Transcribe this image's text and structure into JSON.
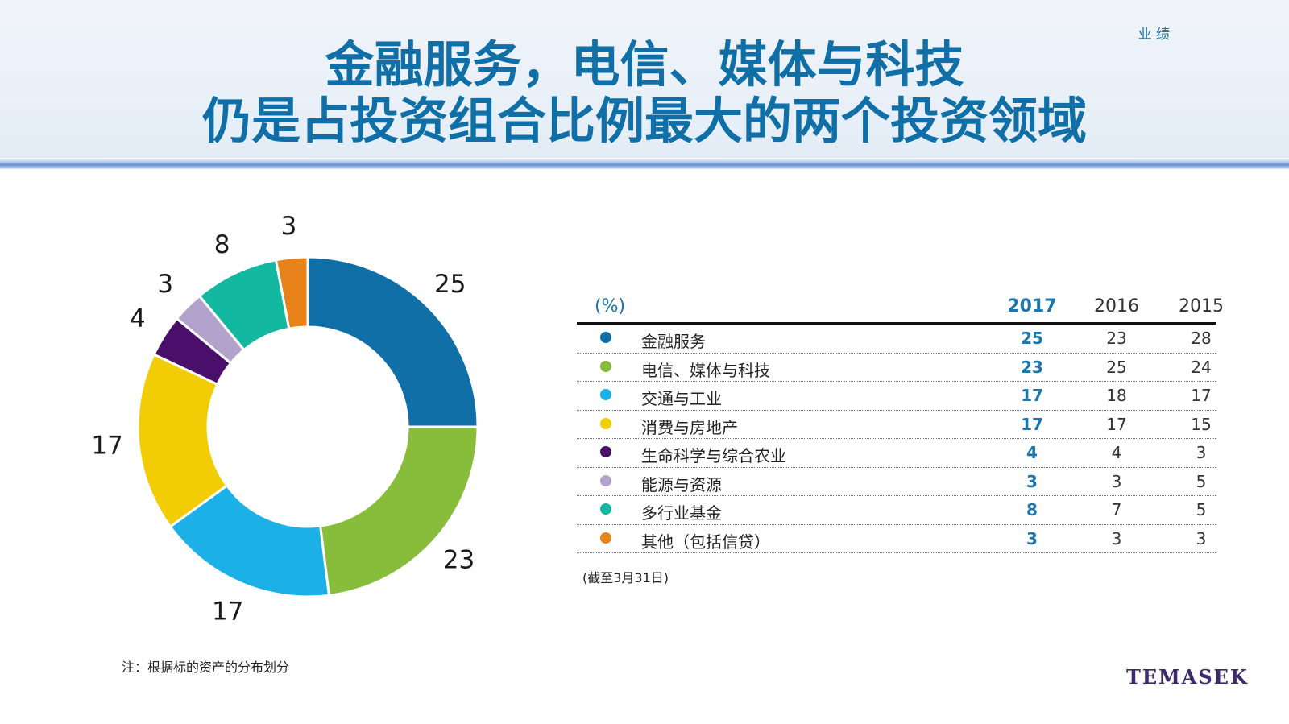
{
  "header": {
    "section_label": "业 绩",
    "title_line1": "金融服务，电信、媒体与科技",
    "title_line2": "仍是占投资组合比例最大的两个投资领域"
  },
  "chart_data": {
    "type": "table",
    "unit_label": "(%)",
    "columns": [
      "2017",
      "2016",
      "2015"
    ],
    "rows": [
      {
        "name": "金融服务",
        "color": "#0f6fa6",
        "values": [
          "25",
          "23",
          "28"
        ]
      },
      {
        "name": "电信、媒体与科技",
        "color": "#88bd3b",
        "values": [
          "23",
          "25",
          "24"
        ]
      },
      {
        "name": "交通与工业",
        "color": "#1bb0e6",
        "values": [
          "17",
          "18",
          "17"
        ]
      },
      {
        "name": "消费与房地产",
        "color": "#f2cc05",
        "values": [
          "17",
          "17",
          "15"
        ]
      },
      {
        "name": "生命科学与综合农业",
        "color": "#4a0f6b",
        "values": [
          "4",
          "4",
          "3"
        ]
      },
      {
        "name": "能源与资源",
        "color": "#b3a2cc",
        "values": [
          "3",
          "3",
          "5"
        ]
      },
      {
        "name": "多行业基金",
        "color": "#12b8a0",
        "values": [
          "8",
          "7",
          "5"
        ]
      },
      {
        "name": "其他（包括信贷）",
        "color": "#e8831c",
        "values": [
          "3",
          "3",
          "3"
        ]
      }
    ],
    "donut": {
      "type": "pie",
      "style": "donut",
      "values": [
        25,
        23,
        17,
        17,
        4,
        3,
        8,
        3
      ],
      "labels": [
        "25",
        "23",
        "17",
        "17",
        "4",
        "3",
        "8",
        "3"
      ],
      "colors": [
        "#0f6fa6",
        "#88bd3b",
        "#1bb0e6",
        "#f2cc05",
        "#4a0f6b",
        "#b3a2cc",
        "#12b8a0",
        "#e8831c"
      ]
    }
  },
  "as_of": "(截至3月31日)",
  "note": "注：根据标的资产的分布划分",
  "logo": "TEMASEK"
}
